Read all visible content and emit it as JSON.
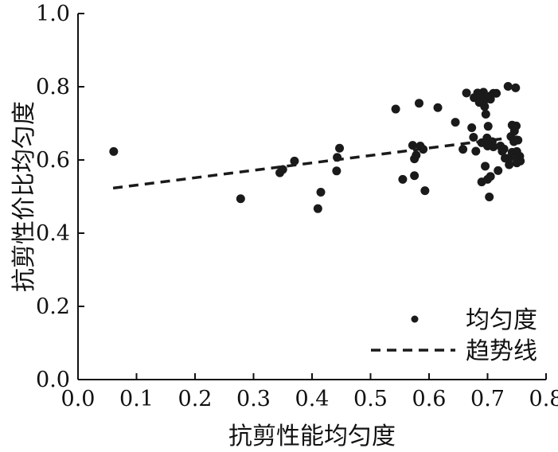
{
  "chart_data": {
    "type": "scatter",
    "xlabel": "抗剪性能均匀度",
    "ylabel": "抗剪性价比均匀度",
    "xlim": [
      0.0,
      0.8
    ],
    "ylim": [
      0.0,
      1.0
    ],
    "x_ticks": [
      "0.0",
      "0.1",
      "0.2",
      "0.3",
      "0.4",
      "0.5",
      "0.6",
      "0.7",
      "0.8"
    ],
    "y_ticks": [
      "0.0",
      "0.2",
      "0.4",
      "0.6",
      "0.8",
      "1.0"
    ],
    "grid": false,
    "legend_position": "bottom-right",
    "series": [
      {
        "name": "均匀度",
        "kind": "points",
        "color": "#1a1a1a",
        "points": [
          [
            0.061,
            0.623
          ],
          [
            0.278,
            0.494
          ],
          [
            0.345,
            0.565
          ],
          [
            0.35,
            0.574
          ],
          [
            0.37,
            0.597
          ],
          [
            0.41,
            0.467
          ],
          [
            0.415,
            0.512
          ],
          [
            0.442,
            0.57
          ],
          [
            0.443,
            0.607
          ],
          [
            0.447,
            0.632
          ],
          [
            0.543,
            0.739
          ],
          [
            0.555,
            0.547
          ],
          [
            0.572,
            0.64
          ],
          [
            0.575,
            0.603
          ],
          [
            0.575,
            0.557
          ],
          [
            0.578,
            0.613
          ],
          [
            0.583,
            0.755
          ],
          [
            0.585,
            0.638
          ],
          [
            0.59,
            0.629
          ],
          [
            0.593,
            0.516
          ],
          [
            0.615,
            0.743
          ],
          [
            0.645,
            0.703
          ],
          [
            0.658,
            0.629
          ],
          [
            0.664,
            0.783
          ],
          [
            0.673,
            0.688
          ],
          [
            0.676,
            0.662
          ],
          [
            0.677,
            0.77
          ],
          [
            0.68,
            0.624
          ],
          [
            0.683,
            0.783
          ],
          [
            0.686,
            0.757
          ],
          [
            0.688,
            0.765
          ],
          [
            0.69,
            0.54
          ],
          [
            0.69,
            0.647
          ],
          [
            0.693,
            0.785
          ],
          [
            0.695,
            0.764
          ],
          [
            0.695,
            0.746
          ],
          [
            0.696,
            0.583
          ],
          [
            0.697,
            0.725
          ],
          [
            0.699,
            0.66
          ],
          [
            0.7,
            0.547
          ],
          [
            0.7,
            0.638
          ],
          [
            0.701,
            0.692
          ],
          [
            0.703,
            0.499
          ],
          [
            0.705,
            0.766
          ],
          [
            0.705,
            0.775
          ],
          [
            0.705,
            0.555
          ],
          [
            0.708,
            0.65
          ],
          [
            0.71,
            0.782
          ],
          [
            0.71,
            0.636
          ],
          [
            0.715,
            0.782
          ],
          [
            0.718,
            0.571
          ],
          [
            0.722,
            0.638
          ],
          [
            0.725,
            0.624
          ],
          [
            0.728,
            0.63
          ],
          [
            0.73,
            0.605
          ],
          [
            0.735,
            0.801
          ],
          [
            0.737,
            0.587
          ],
          [
            0.738,
            0.606
          ],
          [
            0.74,
            0.664
          ],
          [
            0.742,
            0.695
          ],
          [
            0.742,
            0.621
          ],
          [
            0.745,
            0.65
          ],
          [
            0.746,
            0.679
          ],
          [
            0.748,
            0.797
          ],
          [
            0.749,
            0.693
          ],
          [
            0.75,
            0.623
          ],
          [
            0.75,
            0.592
          ],
          [
            0.752,
            0.605
          ],
          [
            0.752,
            0.654
          ],
          [
            0.755,
            0.61
          ],
          [
            0.756,
            0.597
          ]
        ]
      },
      {
        "name": "趋势线",
        "kind": "line",
        "style": "dashed",
        "color": "#1a1a1a",
        "points": [
          [
            0.06,
            0.523
          ],
          [
            0.76,
            0.665
          ]
        ]
      }
    ]
  }
}
